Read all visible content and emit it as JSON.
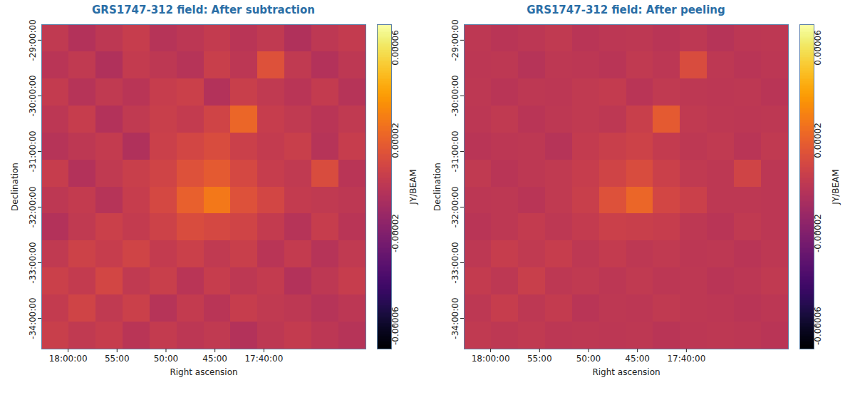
{
  "chart_data": [
    {
      "type": "heatmap",
      "title": "GRS1747-312 field: After subtraction",
      "x_label": "Right ascension",
      "y_label": "Declination",
      "xlim": [
        18.045,
        17.493
      ],
      "xticks": [
        {
          "value": 18.0,
          "label": "18:00:00"
        },
        {
          "value": 17.916667,
          "label": "55:00"
        },
        {
          "value": 17.833333,
          "label": "50:00"
        },
        {
          "value": 17.75,
          "label": "45:00"
        },
        {
          "value": 17.666667,
          "label": "17:40:00"
        }
      ],
      "ylim": [
        -34.55,
        -28.72
      ],
      "yticks": [
        {
          "value": -34,
          "label": "-34:00:00"
        },
        {
          "value": -33,
          "label": "-33:00:00"
        },
        {
          "value": -32,
          "label": "-32:00:00"
        },
        {
          "value": -31,
          "label": "-31:00:00"
        },
        {
          "value": -30,
          "label": "-30:00:00"
        },
        {
          "value": -29,
          "label": "-29:00:00"
        }
      ],
      "cells": [
        [
          2e-06,
          -3e-06,
          1e-06,
          4e-06,
          -2e-06,
          0,
          3e-06,
          -1e-06,
          2e-06,
          -4e-06,
          1e-06,
          3e-06
        ],
        [
          -1e-06,
          2e-06,
          -4e-06,
          3e-06,
          1e-06,
          -2e-06,
          5e-06,
          0,
          1.4e-05,
          2e-06,
          -3e-06,
          1e-06
        ],
        [
          3e-06,
          -2e-06,
          2e-06,
          -1e-06,
          4e-06,
          6e-06,
          -3e-06,
          5e-06,
          2e-06,
          -1e-06,
          3e-06,
          -2e-06
        ],
        [
          0,
          4e-06,
          -3e-06,
          2e-06,
          5e-06,
          3e-06,
          8e-06,
          2.2e-05,
          4e-06,
          2e-06,
          -1e-06,
          2e-06
        ],
        [
          -2e-06,
          1e-06,
          3e-06,
          -4e-06,
          6e-06,
          9e-06,
          1.2e-05,
          6e-06,
          3e-06,
          5e-06,
          -2e-06,
          4e-06
        ],
        [
          4e-06,
          -3e-06,
          2e-06,
          5e-06,
          8e-06,
          1.4e-05,
          1.8e-05,
          1e-05,
          4e-06,
          2e-06,
          1.2e-05,
          -1e-06
        ],
        [
          1e-06,
          3e-06,
          -2e-06,
          4e-06,
          1e-05,
          2e-05,
          2.8e-05,
          1.4e-05,
          9e-06,
          3e-06,
          2e-06,
          1e-06
        ],
        [
          -3e-06,
          2e-06,
          6e-06,
          3e-06,
          7e-06,
          1.2e-05,
          1e-05,
          8e-06,
          3e-06,
          -2e-06,
          4e-06,
          -1e-06
        ],
        [
          2e-06,
          7e-06,
          4e-06,
          8e-06,
          3e-06,
          6e-06,
          2e-06,
          5e-06,
          -1e-06,
          3e-06,
          -2e-06,
          2e-06
        ],
        [
          6e-06,
          3e-06,
          9e-06,
          2e-06,
          5e-06,
          -1e-06,
          4e-06,
          1e-06,
          3e-06,
          -3e-06,
          1e-06,
          4e-06
        ],
        [
          3e-06,
          8e-06,
          2e-06,
          6e-06,
          -2e-06,
          3e-06,
          -1e-06,
          4e-06,
          2e-06,
          1e-06,
          -2e-06,
          0
        ],
        [
          5e-06,
          2e-06,
          4e-06,
          -1e-06,
          3e-06,
          0,
          2e-06,
          -3e-06,
          1e-06,
          3e-06,
          0,
          -2e-06
        ]
      ],
      "color_range": [
        -7e-05,
        7e-05
      ],
      "color_ticks": [
        6e-05,
        2e-05,
        -2e-05,
        -6e-05
      ],
      "color_label": "JY/BEAM"
    },
    {
      "type": "heatmap",
      "title": "GRS1747-312 field: After peeling",
      "x_label": "Right ascension",
      "y_label": "Declination",
      "xlim": [
        18.045,
        17.493
      ],
      "xticks": [
        {
          "value": 18.0,
          "label": "18:00:00"
        },
        {
          "value": 17.916667,
          "label": "55:00"
        },
        {
          "value": 17.833333,
          "label": "50:00"
        },
        {
          "value": 17.75,
          "label": "45:00"
        },
        {
          "value": 17.666667,
          "label": "17:40:00"
        }
      ],
      "ylim": [
        -34.55,
        -28.72
      ],
      "yticks": [
        {
          "value": -34,
          "label": "-34:00:00"
        },
        {
          "value": -33,
          "label": "-33:00:00"
        },
        {
          "value": -32,
          "label": "-32:00:00"
        },
        {
          "value": -31,
          "label": "-31:00:00"
        },
        {
          "value": -30,
          "label": "-30:00:00"
        },
        {
          "value": -29,
          "label": "-29:00:00"
        }
      ],
      "cells": [
        [
          1e-06,
          -1e-06,
          0,
          2e-06,
          -1e-06,
          0,
          1e-06,
          -1e-06,
          1e-06,
          -2e-06,
          0,
          1e-06
        ],
        [
          0,
          1e-06,
          -2e-06,
          1e-06,
          0,
          -1e-06,
          2e-06,
          0,
          1.2e-05,
          1e-06,
          -1e-06,
          0
        ],
        [
          1e-06,
          -1e-06,
          1e-06,
          0,
          2e-06,
          3e-06,
          -1e-06,
          2e-06,
          1e-06,
          0,
          1e-06,
          -1e-06
        ],
        [
          0,
          2e-06,
          -1e-06,
          1e-06,
          2e-06,
          1e-06,
          5e-06,
          1.8e-05,
          2e-06,
          1e-06,
          0,
          1e-06
        ],
        [
          -1e-06,
          0,
          1e-06,
          -2e-06,
          3e-06,
          5e-06,
          7e-06,
          3e-06,
          1e-06,
          2e-06,
          -1e-06,
          2e-06
        ],
        [
          2e-06,
          -1e-06,
          1e-06,
          2e-06,
          4e-06,
          8e-06,
          1.2e-05,
          6e-06,
          2e-06,
          1e-06,
          8e-06,
          0
        ],
        [
          0,
          1e-06,
          -1e-06,
          2e-06,
          5e-06,
          1.4e-05,
          2.2e-05,
          9e-06,
          6e-06,
          1e-06,
          1e-06,
          0
        ],
        [
          -1e-06,
          1e-06,
          3e-06,
          1e-06,
          3e-06,
          6e-06,
          5e-06,
          4e-06,
          1e-06,
          -1e-06,
          2e-06,
          0
        ],
        [
          1e-06,
          4e-06,
          2e-06,
          4e-06,
          1e-06,
          3e-06,
          1e-06,
          2e-06,
          0,
          1e-06,
          -1e-06,
          1e-06
        ],
        [
          3e-06,
          1e-06,
          5e-06,
          1e-06,
          2e-06,
          0,
          2e-06,
          0,
          1e-06,
          -1e-06,
          0,
          2e-06
        ],
        [
          1e-06,
          4e-06,
          1e-06,
          3e-06,
          -1e-06,
          1e-06,
          0,
          2e-06,
          1e-06,
          0,
          -1e-06,
          0
        ],
        [
          2e-06,
          1e-06,
          2e-06,
          0,
          1e-06,
          0,
          1e-06,
          -1e-06,
          0,
          1e-06,
          0,
          -1e-06
        ]
      ],
      "color_range": [
        -7e-05,
        7e-05
      ],
      "color_ticks": [
        6e-05,
        2e-05,
        -2e-05,
        -6e-05
      ],
      "color_label": "JY/BEAM"
    }
  ]
}
